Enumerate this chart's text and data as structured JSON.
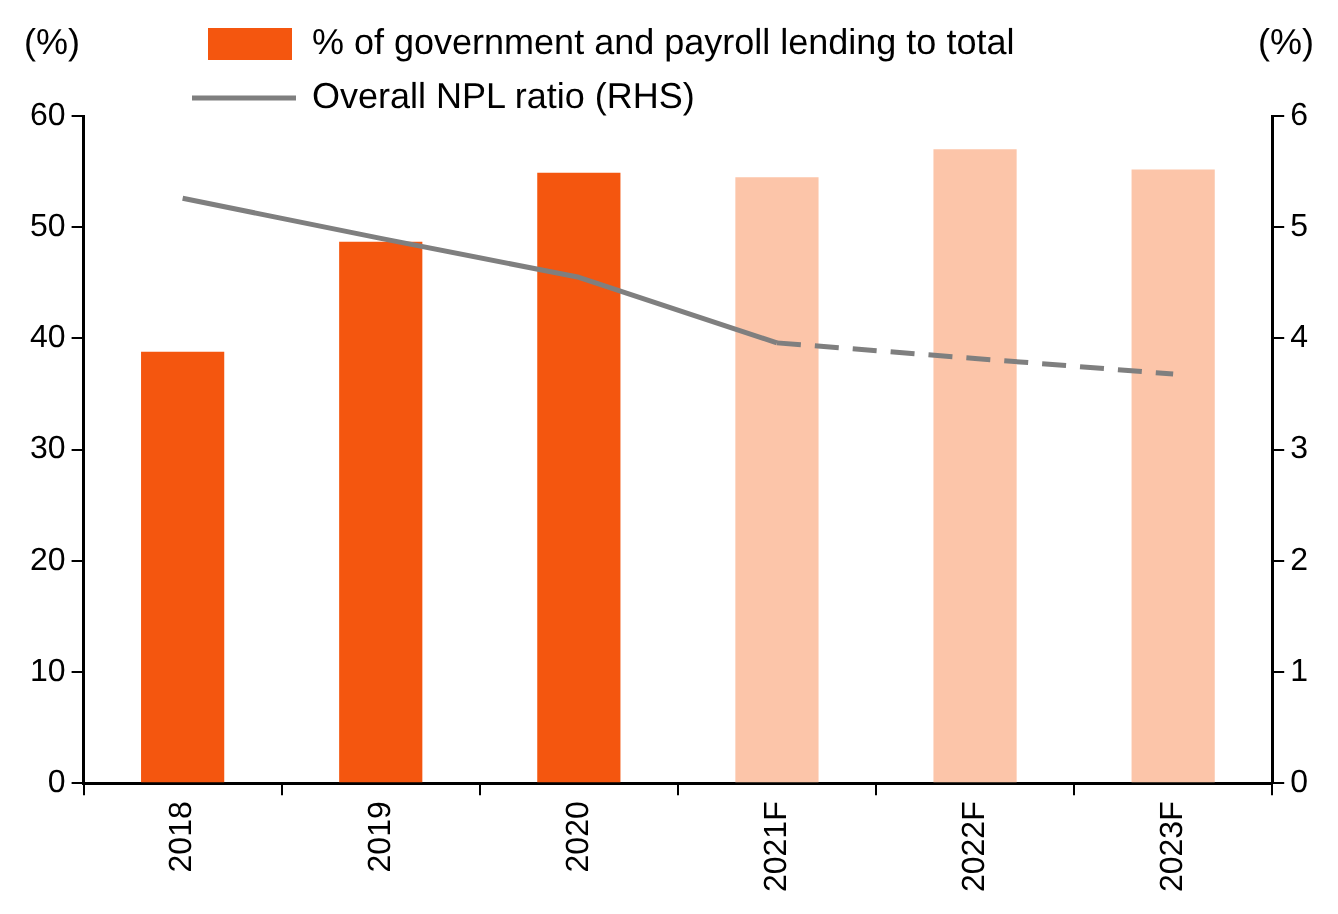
{
  "chart_data": {
    "type": "bar",
    "ylabel": "(%)",
    "y2label": "(%)",
    "categories": [
      "2018",
      "2019",
      "2020",
      "2021F",
      "2022F",
      "2023F"
    ],
    "series": [
      {
        "name": "% of government and payroll lending to total",
        "color": "#f4560f",
        "colors": [
          "#f4560f",
          "#f4560f",
          "#f4560f",
          "#fcc5a9",
          "#fcc5a9",
          "#fcc5a9"
        ],
        "values": [
          38.8,
          48.7,
          54.9,
          54.5,
          57.0,
          55.2
        ]
      },
      {
        "name": "Overall NPL ratio (RHS)",
        "type": "line",
        "axis": "y2",
        "color": "#7f7f7f",
        "line_style": "solid",
        "values": [
          5.26,
          4.9,
          4.55,
          3.96,
          null,
          null
        ]
      },
      {
        "type": "line",
        "axis": "y2",
        "color": "#7f7f7f",
        "line_style": "dashed",
        "values": [
          null,
          null,
          null,
          3.96,
          3.82,
          3.68
        ]
      }
    ],
    "ylim": [
      0,
      60
    ],
    "yticks": [
      0,
      10,
      20,
      30,
      40,
      50,
      60
    ],
    "y2lim": [
      0,
      6
    ],
    "y2ticks": [
      0,
      1,
      2,
      3,
      4,
      5,
      6
    ],
    "grid": false,
    "legend": "top",
    "marker": "none"
  }
}
